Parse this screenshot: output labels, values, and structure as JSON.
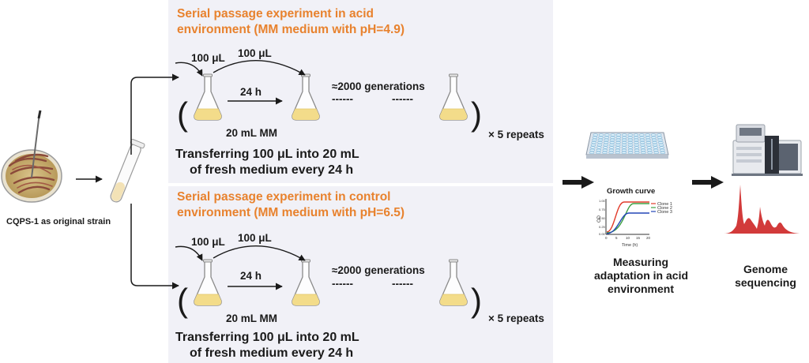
{
  "colors": {
    "panel": "#f1f1f7",
    "title": "#e8822e",
    "medium": "#f3dc8a",
    "flask": "#8a8a8a",
    "clone1": "#e23b2a",
    "clone2": "#3ea043",
    "clone3": "#2346b7",
    "sequence": "#d23a3a"
  },
  "origin": {
    "label": "CQPS-1 as original strain"
  },
  "acid": {
    "title_line1": "Serial passage experiment in acid",
    "title_line2": "environment (MM medium with pH=4.9)",
    "vol_in": "100 μL",
    "vol_transfer": "100 μL",
    "interval": "24 h",
    "generations": "≈2000 generations",
    "dashes_a": "------",
    "dashes_b": "------",
    "medium": "20 mL MM",
    "paren_open": "(",
    "paren_close": ")",
    "repeats": "× 5 repeats",
    "desc_line1": "Transferring 100 μL  into 20 mL",
    "desc_line2": "of fresh medium every 24 h"
  },
  "control": {
    "title_line1": "Serial passage experiment in control",
    "title_line2": "environment (MM medium with pH=6.5)",
    "vol_in": "100 μL",
    "vol_transfer": "100 μL",
    "interval": "24 h",
    "generations": "≈2000 generations",
    "dashes_a": "------",
    "dashes_b": "------",
    "medium": "20 mL MM",
    "paren_open": "(",
    "paren_close": ")",
    "repeats": "× 5 repeats",
    "desc_line1": "Transferring 100 μL  into 20 mL",
    "desc_line2": "of fresh medium every 24 h"
  },
  "growth": {
    "title": "Growth curve",
    "ylabel": "OD",
    "xlabel": "Time (h)",
    "xticks": [
      "0",
      "5",
      "10",
      "15",
      "20"
    ],
    "yticks": [
      "1.00",
      "0.75",
      "0.50",
      "0.25",
      "0.00"
    ],
    "legend": [
      "Clone 1",
      "Clone 2",
      "Clone 3"
    ]
  },
  "measure": {
    "line1": "Measuring",
    "line2": "adaptation in acid",
    "line3": "environment"
  },
  "genome": {
    "line1": "Genome",
    "line2": "sequencing"
  }
}
